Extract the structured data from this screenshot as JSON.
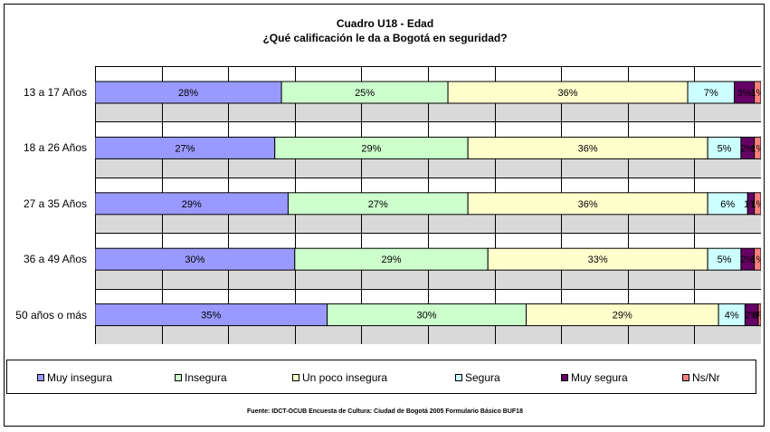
{
  "chart_data": {
    "type": "bar",
    "orientation": "horizontal",
    "stacked": "percent",
    "title": "Cuadro U18 - Edad",
    "subtitle": "¿Qué calificación le da a Bogotá en seguridad?",
    "categories": [
      "13 a 17 Años",
      "18 a 26 Años",
      "27 a 35 Años",
      "36 a 49 Años",
      "50 años o más"
    ],
    "series": [
      {
        "name": "Muy insegura",
        "color": "#9999ff",
        "values": [
          28,
          27,
          29,
          30,
          35
        ],
        "labels": [
          "28%",
          "27%",
          "29%",
          "30%",
          "35%"
        ]
      },
      {
        "name": "Insegura",
        "color": "#ccffcc",
        "values": [
          25,
          29,
          27,
          29,
          30
        ],
        "labels": [
          "25%",
          "29%",
          "27%",
          "29%",
          "30%"
        ]
      },
      {
        "name": "Un poco insegura",
        "color": "#ffffcc",
        "values": [
          36,
          36,
          36,
          33,
          29
        ],
        "labels": [
          "36%",
          "36%",
          "36%",
          "33%",
          "29%"
        ]
      },
      {
        "name": "Segura",
        "color": "#ccffff",
        "values": [
          7,
          5,
          6,
          5,
          4
        ],
        "labels": [
          "7%",
          "5%",
          "6%",
          "5%",
          "4%"
        ]
      },
      {
        "name": "Muy segura",
        "color": "#660066",
        "values": [
          3,
          2,
          1,
          2,
          2
        ],
        "labels": [
          "3%",
          "2%",
          "1%",
          "2%",
          "2%"
        ]
      },
      {
        "name": "Ns/Nr",
        "color": "#ff8080",
        "values": [
          1,
          1,
          1,
          1,
          0.4
        ],
        "labels": [
          "1%",
          "1%",
          "1%",
          "1%",
          "0%"
        ]
      }
    ],
    "xlim": [
      0,
      100
    ],
    "grid": true,
    "legend_position": "bottom",
    "source": "Fuente: IDCT-OCUB Encuesta de Cultura: Ciudad de Bogotá 2005 Formulario Básico BUF18"
  }
}
